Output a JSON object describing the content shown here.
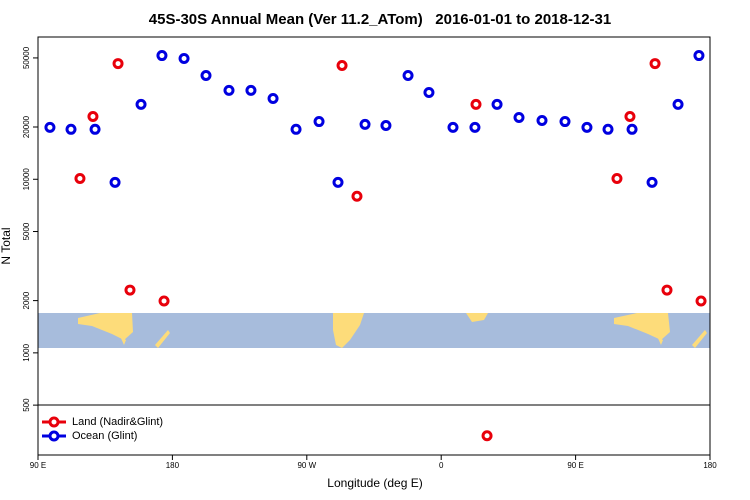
{
  "chart_data": {
    "type": "scatter",
    "title": "45S-30S Annual Mean (Ver 11.2_ATom)   2016-01-01 to 2018-12-31",
    "x_label": "Longitude (deg E)",
    "y_label": "N Total",
    "log_y": true,
    "legend": "bottom-left",
    "xlim": [
      90,
      540
    ],
    "ylim": [
      258,
      66000
    ],
    "xticks": [
      {
        "value": 90,
        "label": "90 E"
      },
      180,
      {
        "value": 270,
        "label": "90 W"
      },
      {
        "value": 360,
        "label": "0"
      },
      {
        "value": 450,
        "label": "90 E"
      },
      {
        "value": 540,
        "label": "180"
      }
    ],
    "yticks": [
      500,
      1000,
      2000,
      5000,
      10000,
      20000,
      50000
    ],
    "series": [
      {
        "name": "Land (Nadir&Glint)",
        "color": "#e8000b",
        "x": [
          118.1,
          126.8,
          143.6,
          151.6,
          174.4,
          293.6,
          303.6,
          383.3,
          390.7,
          477.7,
          486.4,
          503.2,
          511.2,
          534.0
        ],
        "values": [
          10100,
          23000,
          46400,
          2300,
          1990,
          45200,
          7980,
          27000,
          333,
          10100,
          23000,
          46400,
          2300,
          1990
        ]
      },
      {
        "name": "Ocean (Glint)",
        "color": "#0000e0",
        "x": [
          98.0,
          112.1,
          128.2,
          141.6,
          159.0,
          173.0,
          187.8,
          202.5,
          217.9,
          232.6,
          247.4,
          262.8,
          278.2,
          290.9,
          309.0,
          323.0,
          337.8,
          351.8,
          367.9,
          382.6,
          397.4,
          412.1,
          427.5,
          442.9,
          457.6,
          471.7,
          487.8,
          501.2,
          518.6,
          532.6
        ],
        "values": [
          19900,
          19400,
          19400,
          9600,
          27000,
          51600,
          49600,
          39600,
          32500,
          32500,
          29200,
          19400,
          21500,
          9600,
          20700,
          20400,
          39600,
          31600,
          19900,
          19900,
          27000,
          22700,
          21800,
          21500,
          19900,
          19400,
          19400,
          9600,
          27000,
          51600
        ]
      }
    ]
  }
}
